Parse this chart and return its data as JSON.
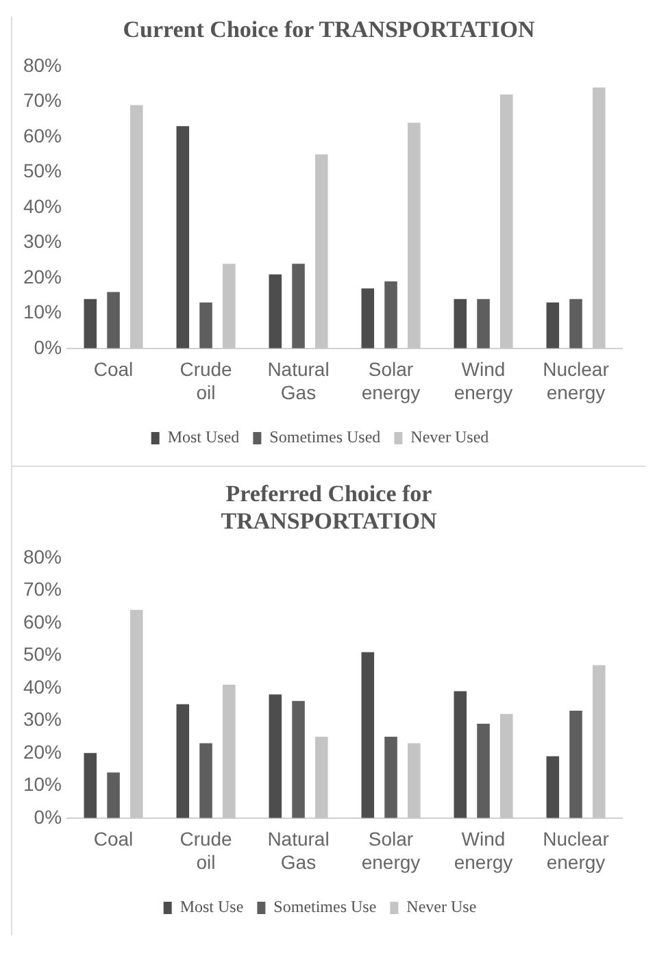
{
  "chart_data": [
    {
      "type": "bar",
      "title": "Current Choice for TRANSPORTATION",
      "categories": [
        "Coal",
        "Crude oil",
        "Natural Gas",
        "Solar energy",
        "Wind energy",
        "Nuclear energy"
      ],
      "series": [
        {
          "name": "Most Used",
          "color": "#4d4d4d",
          "values": [
            14,
            63,
            21,
            17,
            14,
            13
          ]
        },
        {
          "name": "Sometimes Used",
          "color": "#5e5e5e",
          "values": [
            16,
            13,
            24,
            19,
            14,
            14
          ]
        },
        {
          "name": "Never Used",
          "color": "#c4c4c4",
          "values": [
            69,
            24,
            55,
            64,
            72,
            74
          ]
        }
      ],
      "ylim": [
        0,
        80
      ],
      "yticks": [
        {
          "value": 0,
          "label": "0%"
        },
        {
          "value": 10,
          "label": "10%"
        },
        {
          "value": 20,
          "label": "20%"
        },
        {
          "value": 30,
          "label": "30%"
        },
        {
          "value": 40,
          "label": "40%"
        },
        {
          "value": 50,
          "label": "50%"
        },
        {
          "value": 60,
          "label": "60%"
        },
        {
          "value": 70,
          "label": "70%"
        },
        {
          "value": 80,
          "label": "80%"
        }
      ],
      "grid": false,
      "legend": "bottom"
    },
    {
      "type": "bar",
      "title": "Preferred Choice for TRANSPORTATION",
      "categories": [
        "Coal",
        "Crude oil",
        "Natural Gas",
        "Solar energy",
        "Wind energy",
        "Nuclear energy"
      ],
      "series": [
        {
          "name": "Most Use",
          "color": "#4d4d4d",
          "values": [
            20,
            35,
            38,
            51,
            39,
            19
          ]
        },
        {
          "name": "Sometimes Use",
          "color": "#5e5e5e",
          "values": [
            14,
            23,
            36,
            25,
            29,
            33
          ]
        },
        {
          "name": "Never Use",
          "color": "#c4c4c4",
          "values": [
            64,
            41,
            25,
            23,
            32,
            47
          ]
        }
      ],
      "ylim": [
        0,
        80
      ],
      "yticks": [
        {
          "value": 0,
          "label": "0%"
        },
        {
          "value": 10,
          "label": "10%"
        },
        {
          "value": 20,
          "label": "20%"
        },
        {
          "value": 30,
          "label": "30%"
        },
        {
          "value": 40,
          "label": "40%"
        },
        {
          "value": 50,
          "label": "50%"
        },
        {
          "value": 60,
          "label": "60%"
        },
        {
          "value": 70,
          "label": "70%"
        },
        {
          "value": 80,
          "label": "80%"
        }
      ],
      "grid": false,
      "legend": "bottom"
    }
  ]
}
